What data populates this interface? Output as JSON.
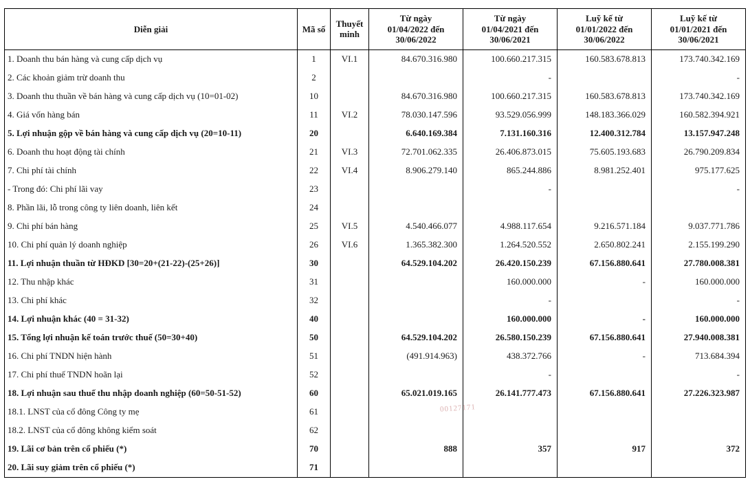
{
  "header": {
    "desc": "Diễn giải",
    "code": "Mã số",
    "note": "Thuyết minh",
    "p1_a": "Từ ngày",
    "p1_b": "01/04/2022 đến",
    "p1_c": "30/06/2022",
    "p2_a": "Từ ngày",
    "p2_b": "01/04/2021 đến",
    "p2_c": "30/06/2021",
    "p3_a": "Luỹ kế từ",
    "p3_b": "01/01/2022 đến",
    "p3_c": "30/06/2022",
    "p4_a": "Luỹ kế từ",
    "p4_b": "01/01/2021 đến",
    "p4_c": "30/06/2021"
  },
  "rows": [
    {
      "bold": false,
      "desc": "1. Doanh thu bán hàng và cung cấp dịch vụ",
      "code": "1",
      "note": "VI.1",
      "v1": "84.670.316.980",
      "v2": "100.660.217.315",
      "v3": "160.583.678.813",
      "v4": "173.740.342.169"
    },
    {
      "bold": false,
      "desc": "2. Các khoản giảm trừ doanh thu",
      "code": "2",
      "note": "",
      "v1": "",
      "v2": "-",
      "v3": "",
      "v4": "-"
    },
    {
      "bold": false,
      "desc": "3. Doanh thu thuần về bán hàng và cung cấp dịch vụ (10=01-02)",
      "code": "10",
      "note": "",
      "v1": "84.670.316.980",
      "v2": "100.660.217.315",
      "v3": "160.583.678.813",
      "v4": "173.740.342.169"
    },
    {
      "bold": false,
      "desc": "4. Giá vốn hàng bán",
      "code": "11",
      "note": "VI.2",
      "v1": "78.030.147.596",
      "v2": "93.529.056.999",
      "v3": "148.183.366.029",
      "v4": "160.582.394.921"
    },
    {
      "bold": true,
      "desc": "5. Lợi nhuận gộp về bán hàng và cung cấp dịch vụ (20=10-11)",
      "code": "20",
      "note": "",
      "v1": "6.640.169.384",
      "v2": "7.131.160.316",
      "v3": "12.400.312.784",
      "v4": "13.157.947.248"
    },
    {
      "bold": false,
      "desc": "6. Doanh thu hoạt động tài chính",
      "code": "21",
      "note": "VI.3",
      "v1": "72.701.062.335",
      "v2": "26.406.873.015",
      "v3": "75.605.193.683",
      "v4": "26.790.209.834"
    },
    {
      "bold": false,
      "desc": "7. Chi phí tài chính",
      "code": "22",
      "note": "VI.4",
      "v1": "8.906.279.140",
      "v2": "865.244.886",
      "v3": "8.981.252.401",
      "v4": "975.177.625"
    },
    {
      "bold": false,
      "desc": "  - Trong đó: Chi phí lãi vay",
      "code": "23",
      "note": "",
      "v1": "",
      "v2": "-",
      "v3": "",
      "v4": "-"
    },
    {
      "bold": false,
      "desc": "8. Phần lãi, lỗ trong công ty liên doanh, liên kết",
      "code": "24",
      "note": "",
      "v1": "",
      "v2": "",
      "v3": "",
      "v4": ""
    },
    {
      "bold": false,
      "desc": "9. Chi phí bán hàng",
      "code": "25",
      "note": "VI.5",
      "v1": "4.540.466.077",
      "v2": "4.988.117.654",
      "v3": "9.216.571.184",
      "v4": "9.037.771.786"
    },
    {
      "bold": false,
      "desc": "10. Chi phí quản lý doanh nghiệp",
      "code": "26",
      "note": "VI.6",
      "v1": "1.365.382.300",
      "v2": "1.264.520.552",
      "v3": "2.650.802.241",
      "v4": "2.155.199.290"
    },
    {
      "bold": true,
      "desc": "11. Lợi nhuận thuần từ HĐKD [30=20+(21-22)-(25+26)]",
      "code": "30",
      "note": "",
      "v1": "64.529.104.202",
      "v2": "26.420.150.239",
      "v3": "67.156.880.641",
      "v4": "27.780.008.381"
    },
    {
      "bold": false,
      "desc": "12. Thu nhập khác",
      "code": "31",
      "note": "",
      "v1": "",
      "v2": "160.000.000",
      "v3": "-",
      "v4": "160.000.000"
    },
    {
      "bold": false,
      "desc": "13. Chi phí khác",
      "code": "32",
      "note": "",
      "v1": "",
      "v2": "-",
      "v3": "",
      "v4": "-"
    },
    {
      "bold": true,
      "desc": "14. Lợi nhuận khác (40 = 31-32)",
      "code": "40",
      "note": "",
      "v1": "",
      "v2": "160.000.000",
      "v3": "-",
      "v4": "160.000.000"
    },
    {
      "bold": true,
      "desc": "15. Tổng lợi nhuận kế toán trước thuế (50=30+40)",
      "code": "50",
      "note": "",
      "v1": "64.529.104.202",
      "v2": "26.580.150.239",
      "v3": "67.156.880.641",
      "v4": "27.940.008.381"
    },
    {
      "bold": false,
      "desc": "16. Chi phí TNDN hiện hành",
      "code": "51",
      "note": "",
      "v1": "(491.914.963)",
      "v2": "438.372.766",
      "v3": "-",
      "v4": "713.684.394"
    },
    {
      "bold": false,
      "desc": "17. Chi phí thuế TNDN hoãn lại",
      "code": "52",
      "note": "",
      "v1": "",
      "v2": "-",
      "v3": "",
      "v4": "-"
    },
    {
      "bold": true,
      "desc": "18. Lợi nhuận sau thuế thu nhập doanh nghiệp (60=50-51-52)",
      "code": "60",
      "note": "",
      "v1": "65.021.019.165",
      "v2": "26.141.777.473",
      "v3": "67.156.880.641",
      "v4": "27.226.323.987"
    },
    {
      "bold": false,
      "desc": "18.1. LNST của cổ đông Công ty mẹ",
      "code": "61",
      "note": "",
      "v1": "",
      "v2": "",
      "v3": "",
      "v4": ""
    },
    {
      "bold": false,
      "desc": "18.2. LNST của cổ đông không kiểm soát",
      "code": "62",
      "note": "",
      "v1": "",
      "v2": "",
      "v3": "",
      "v4": ""
    },
    {
      "bold": true,
      "desc": "19. Lãi cơ bản trên cổ phiếu (*)",
      "code": "70",
      "note": "",
      "v1": "888",
      "v2": "357",
      "v3": "917",
      "v4": "372"
    },
    {
      "bold": true,
      "desc": "20. Lãi suy giảm trên cổ phiếu (*)",
      "code": "71",
      "note": "",
      "v1": "",
      "v2": "",
      "v3": "",
      "v4": ""
    }
  ],
  "watermark": "00127171"
}
